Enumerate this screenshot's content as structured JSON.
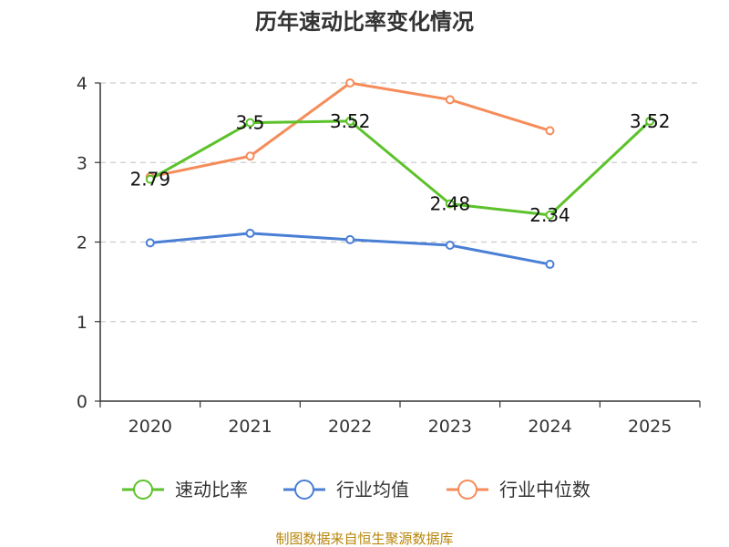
{
  "chart_data": {
    "type": "line",
    "title": "历年速动比率变化情况",
    "categories": [
      "2020",
      "2021",
      "2022",
      "2023",
      "2024",
      "2025"
    ],
    "yticks": [
      "0",
      "1",
      "2",
      "3",
      "4"
    ],
    "ylim": [
      0,
      4
    ],
    "series": [
      {
        "name": "速动比率",
        "color": "#5cc22a",
        "values": [
          2.79,
          3.5,
          3.52,
          2.48,
          2.34,
          3.52
        ],
        "labels": [
          "2.79",
          "3.5",
          "3.52",
          "2.48",
          "2.34",
          "3.52"
        ]
      },
      {
        "name": "行业均值",
        "color": "#4a7fd6",
        "values": [
          1.99,
          2.11,
          2.03,
          1.96,
          1.72,
          null
        ]
      },
      {
        "name": "行业中位数",
        "color": "#f58c5a",
        "values": [
          2.82,
          3.08,
          4.0,
          3.79,
          3.4,
          null
        ]
      }
    ],
    "legend_position": "bottom",
    "grid": "horizontal-dashed"
  },
  "footer": {
    "source": "制图数据来自恒生聚源数据库"
  }
}
